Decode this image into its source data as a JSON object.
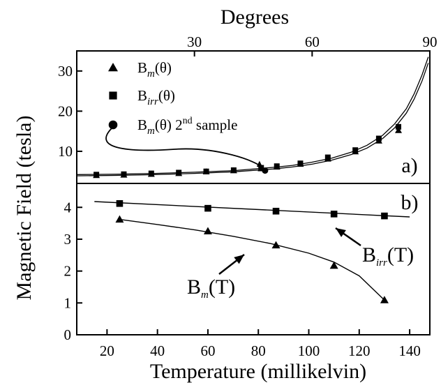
{
  "chart_data": [
    {
      "panel": "a)",
      "type": "scatter",
      "top_axis": {
        "label": "Degrees",
        "ticks": [
          30,
          60,
          90
        ],
        "range": [
          0,
          90
        ]
      },
      "y_ticks": [
        10,
        20,
        30
      ],
      "ylim": [
        2,
        35
      ],
      "grid": false,
      "legend_position": "top-left",
      "legend": [
        {
          "main": "B",
          "sub": "m",
          "tail": "(θ)",
          "sup": "",
          "after": "",
          "marker": "triangle"
        },
        {
          "main": "B",
          "sub": "irr",
          "tail": "(θ)",
          "sup": "",
          "after": "",
          "marker": "square"
        },
        {
          "main": "B",
          "sub": "m",
          "tail": "(θ) 2",
          "sup": "nd",
          "after": " sample",
          "marker": "circle"
        }
      ],
      "series": [
        {
          "name": "B_m(θ)",
          "marker": "triangle",
          "x": [
            5,
            12,
            19,
            26,
            33,
            40,
            47,
            51,
            57,
            64,
            71,
            77,
            82
          ],
          "y": [
            4.0,
            4.1,
            4.3,
            4.5,
            4.9,
            5.2,
            5.7,
            6.1,
            6.8,
            8.1,
            9.9,
            12.6,
            15.2
          ]
        },
        {
          "name": "B_irr(θ)",
          "marker": "square",
          "x": [
            5,
            12,
            19,
            26,
            33,
            40,
            47,
            51,
            57,
            64,
            71,
            77,
            82
          ],
          "y": [
            4.2,
            4.3,
            4.5,
            4.7,
            5.0,
            5.3,
            5.9,
            6.3,
            7.0,
            8.5,
            10.3,
            13.2,
            16.1
          ]
        },
        {
          "name": "B_m(θ) 2nd sample",
          "marker": "circle",
          "x": [
            48
          ],
          "y": [
            5.2
          ]
        }
      ],
      "fit_curves_x": [
        0,
        10,
        20,
        30,
        40,
        50,
        55,
        60,
        65,
        70,
        74,
        78,
        81,
        84,
        86,
        88,
        89.6
      ],
      "fit_lower_y": [
        3.9,
        4.0,
        4.2,
        4.5,
        4.9,
        5.6,
        6.1,
        6.8,
        7.8,
        9.2,
        10.8,
        13.2,
        15.8,
        19.5,
        23.0,
        27.5,
        32.0
      ],
      "fit_upper_y": [
        4.2,
        4.3,
        4.5,
        4.8,
        5.2,
        6.0,
        6.5,
        7.3,
        8.3,
        9.8,
        11.5,
        14.0,
        16.8,
        20.6,
        24.3,
        29.0,
        33.5
      ]
    },
    {
      "panel": "b)",
      "type": "scatter",
      "x_ticks": [
        20,
        40,
        60,
        80,
        100,
        120,
        140
      ],
      "xlim": [
        8,
        148
      ],
      "y_ticks": [
        0,
        1,
        2,
        3,
        4
      ],
      "ylim": [
        0,
        4.75
      ],
      "grid": false,
      "series": [
        {
          "name": "B_irr(T)",
          "marker": "square",
          "x": [
            25,
            60,
            87,
            110,
            130
          ],
          "y": [
            4.12,
            3.97,
            3.88,
            3.79,
            3.73
          ]
        },
        {
          "name": "B_m(T)",
          "marker": "triangle",
          "x": [
            25,
            60,
            87,
            110,
            130
          ],
          "y": [
            3.62,
            3.25,
            2.81,
            2.17,
            1.09
          ]
        }
      ],
      "fit_irr": {
        "x": [
          15,
          140
        ],
        "y": [
          4.18,
          3.7
        ]
      },
      "fit_m": {
        "x": [
          25,
          40,
          55,
          70,
          85,
          100,
          110,
          120,
          130
        ],
        "y": [
          3.62,
          3.46,
          3.29,
          3.09,
          2.86,
          2.56,
          2.28,
          1.85,
          1.09
        ]
      },
      "annotations": [
        {
          "main": "B",
          "sub": "irr",
          "tail": "(T)"
        },
        {
          "main": "B",
          "sub": "m",
          "tail": "(T)"
        }
      ]
    }
  ],
  "shared_labels": {
    "ylabel": "Magnetic Field (tesla)",
    "xlabel": "Temperature (millikelvin)"
  }
}
